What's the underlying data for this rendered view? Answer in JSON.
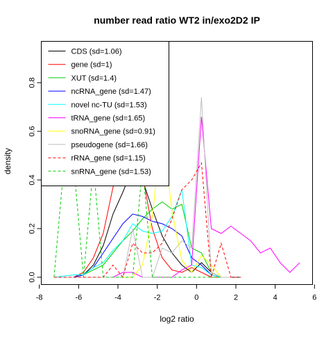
{
  "chart_data": {
    "type": "line",
    "title": "number read ratio WT2 in/exo2D2 IP",
    "xlabel": "log2 ratio",
    "ylabel": "density",
    "xlim": [
      -7.9,
      5.9
    ],
    "ylim": [
      -0.03,
      0.97
    ],
    "xticks": [
      -8,
      -6,
      -4,
      -2,
      0,
      2,
      4,
      6
    ],
    "yticks": [
      0.0,
      0.2,
      0.4,
      0.6,
      0.8
    ],
    "legend_position": "top-left",
    "series": [
      {
        "name": "CDS (sd=1.06)",
        "color": "#000000",
        "dash": "solid",
        "x": [
          -7.25,
          -6.25,
          -5.75,
          -5.25,
          -4.75,
          -4.25,
          -3.75,
          -3.25,
          -2.75,
          -2.25,
          -1.75,
          -1.25,
          -0.75,
          -0.25,
          0.25,
          0.75,
          1.25,
          1.75,
          2.25
        ],
        "y": [
          0.0,
          0.0,
          0.01,
          0.05,
          0.13,
          0.26,
          0.35,
          0.45,
          0.4,
          0.28,
          0.17,
          0.1,
          0.05,
          0.02,
          0.06,
          0.02,
          0.0,
          0.0,
          0.0
        ]
      },
      {
        "name": "gene (sd=1)",
        "color": "#ff0000",
        "dash": "solid",
        "x": [
          -7.25,
          -6.25,
          -5.75,
          -5.25,
          -4.75,
          -4.25,
          -3.75,
          -3.25,
          -2.75,
          -2.25,
          -1.75,
          -1.25,
          -0.75,
          -0.25,
          0.25,
          0.75,
          1.25
        ],
        "y": [
          0.0,
          0.0,
          0.02,
          0.08,
          0.18,
          0.37,
          0.52,
          0.58,
          0.42,
          0.2,
          0.08,
          0.03,
          0.02,
          0.04,
          0.02,
          0.0,
          0.0
        ]
      },
      {
        "name": "XUT (sd=1.4)",
        "color": "#00cd00",
        "dash": "solid",
        "x": [
          -7.25,
          -6.25,
          -5.75,
          -5.25,
          -4.75,
          -4.25,
          -3.75,
          -3.25,
          -2.75,
          -2.25,
          -1.75,
          -1.25,
          -0.75,
          -0.25,
          0.25,
          0.75,
          1.25
        ],
        "y": [
          0.0,
          0.0,
          0.01,
          0.03,
          0.05,
          0.1,
          0.15,
          0.19,
          0.24,
          0.28,
          0.31,
          0.28,
          0.3,
          0.12,
          0.1,
          0.02,
          0.0
        ]
      },
      {
        "name": "ncRNA_gene (sd=1.47)",
        "color": "#0000ff",
        "dash": "solid",
        "x": [
          -7.25,
          -6.25,
          -5.75,
          -5.25,
          -4.75,
          -4.25,
          -3.75,
          -3.25,
          -2.75,
          -2.25,
          -1.75,
          -1.25,
          -0.75,
          -0.25,
          0.25,
          0.75,
          1.25
        ],
        "y": [
          0.0,
          0.0,
          0.01,
          0.04,
          0.1,
          0.16,
          0.22,
          0.26,
          0.25,
          0.23,
          0.22,
          0.2,
          0.17,
          0.08,
          0.05,
          0.01,
          0.0
        ]
      },
      {
        "name": "novel nc-TU (sd=1.53)",
        "color": "#00ffff",
        "dash": "solid",
        "x": [
          -7.25,
          -6.25,
          -5.75,
          -5.25,
          -4.75,
          -4.25,
          -3.75,
          -3.25,
          -2.75,
          -2.25,
          -1.75,
          -1.25,
          -0.75,
          -0.25,
          0.25,
          0.75,
          1.25
        ],
        "y": [
          0.0,
          0.01,
          0.01,
          0.04,
          0.06,
          0.11,
          0.15,
          0.22,
          0.19,
          0.18,
          0.19,
          0.25,
          0.36,
          0.05,
          0.04,
          0.01,
          0.0
        ]
      },
      {
        "name": "tRNA_gene (sd=1.65)",
        "color": "#ff00ff",
        "dash": "solid",
        "x": [
          -7.25,
          -4.25,
          -3.75,
          -3.25,
          -2.75,
          -2.25,
          -1.75,
          -1.25,
          -0.75,
          -0.25,
          0.25,
          0.75,
          1.25,
          1.75,
          2.25,
          2.75,
          3.25,
          3.75,
          4.25,
          4.75,
          5.25
        ],
        "y": [
          0.0,
          0.0,
          0.02,
          0.02,
          0.0,
          0.0,
          0.0,
          0.0,
          0.03,
          0.05,
          0.66,
          0.2,
          0.18,
          0.21,
          0.18,
          0.15,
          0.1,
          0.12,
          0.06,
          0.02,
          0.06
        ]
      },
      {
        "name": "snoRNA_gene (sd=0.91)",
        "color": "#ffff00",
        "dash": "solid",
        "x": [
          -7.25,
          -3.25,
          -2.75,
          -2.25,
          -1.75,
          -1.25,
          -0.75,
          -0.25,
          0.25,
          0.75,
          1.25,
          1.75
        ],
        "y": [
          0.0,
          0.0,
          0.05,
          0.25,
          0.62,
          0.27,
          0.07,
          0.02,
          0.09,
          0.05,
          0.0,
          0.0
        ]
      },
      {
        "name": "pseudogene (sd=1.66)",
        "color": "#bebebe",
        "dash": "solid",
        "x": [
          -7.25,
          -4.25,
          -3.75,
          -3.25,
          -2.75,
          -2.25,
          -1.75,
          -1.25,
          -0.75,
          -0.25,
          0.25,
          0.75,
          1.25,
          1.75
        ],
        "y": [
          0.0,
          0.0,
          0.0,
          0.2,
          0.0,
          0.0,
          0.12,
          0.1,
          0.15,
          0.12,
          0.74,
          0.02,
          0.0,
          0.0
        ]
      },
      {
        "name": "rRNA_gene (sd=1.15)",
        "color": "#ff0000",
        "dash": "dashed",
        "x": [
          -7.25,
          -4.75,
          -4.25,
          -3.75,
          -3.25,
          -2.75,
          -2.25,
          -1.75,
          -1.25,
          -0.75,
          -0.25,
          0.25,
          0.75,
          1.25,
          1.75,
          2.25
        ],
        "y": [
          0.0,
          0.0,
          0.05,
          0.0,
          0.14,
          0.1,
          0.1,
          0.14,
          0.24,
          0.36,
          0.4,
          0.47,
          0.0,
          0.14,
          0.0,
          0.0
        ]
      },
      {
        "name": "snRNA_gene (sd=1.53)",
        "color": "#00cd00",
        "dash": "dashed",
        "x": [
          -7.25,
          -6.75,
          -6.25,
          -5.75,
          -5.25,
          -4.75,
          -4.25,
          -3.75,
          -3.25,
          -2.75,
          -2.25,
          -1.75,
          -1.25,
          -0.75,
          -0.25,
          0.25,
          0.75,
          1.25
        ],
        "y": [
          0.0,
          0.46,
          0.46,
          0.0,
          0.46,
          0.0,
          0.0,
          0.0,
          0.0,
          0.46,
          0.0,
          0.0,
          0.0,
          0.0,
          0.0,
          0.0,
          0.0,
          0.0
        ]
      }
    ]
  }
}
